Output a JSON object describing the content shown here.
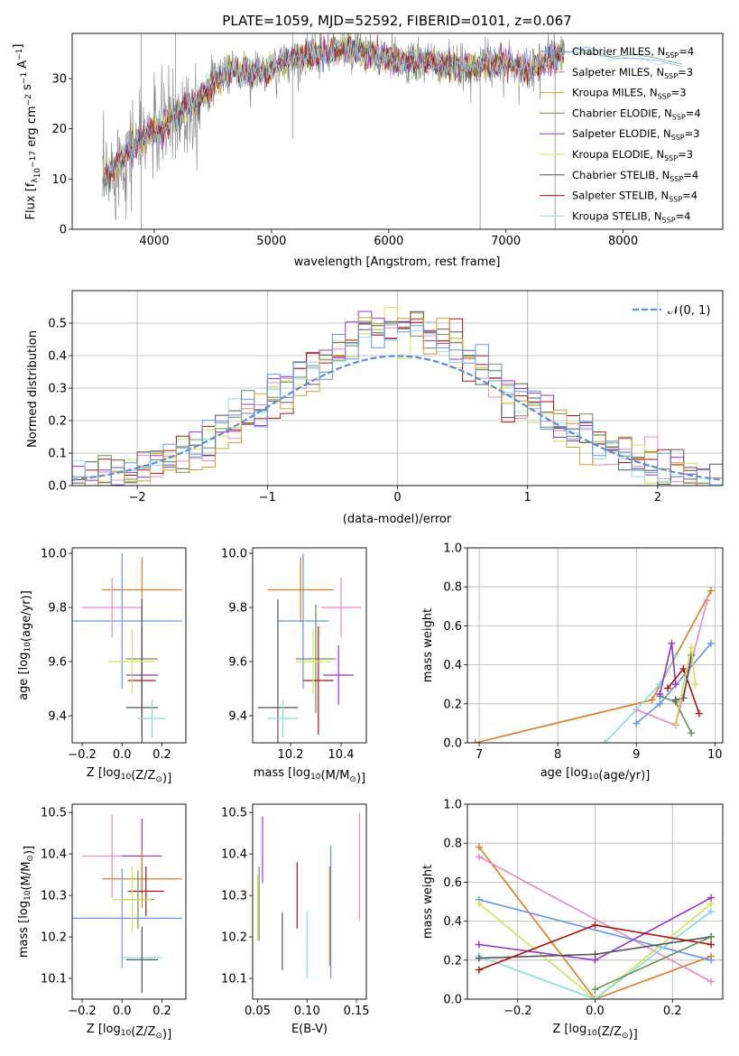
{
  "chart_data": [
    {
      "type": "line",
      "id": "spectrum",
      "title": "PLATE=1059, MJD=52592, FIBERID=0101, z=0.067",
      "xlabel": "wavelength [Angstrom, rest frame]",
      "ylabel_parts": [
        "Flux [f",
        "λ",
        "10",
        "−17",
        " erg cm",
        "−2",
        " s",
        "−1",
        " A",
        "−1",
        "]"
      ],
      "xlim": [
        3300,
        8850
      ],
      "ylim": [
        0,
        39
      ],
      "xticks": [
        4000,
        5000,
        6000,
        7000,
        8000
      ],
      "yticks": [
        0,
        10,
        20,
        30
      ],
      "envelope": {
        "x": [
          3550,
          3650,
          3750,
          3850,
          3950,
          4050,
          4150,
          4250,
          4350,
          4450,
          4550,
          4650,
          4800,
          5000,
          5200,
          5400,
          5600,
          5800,
          6000,
          6200,
          6400,
          6600,
          6800,
          7000,
          7200,
          7400,
          7500
        ],
        "y": [
          9,
          12,
          15,
          17,
          19,
          20,
          22,
          24,
          25,
          28,
          30,
          32,
          31,
          32,
          34,
          35,
          36,
          35,
          34,
          33,
          33,
          32,
          33,
          33,
          32,
          34,
          35
        ]
      },
      "models_right_x": [
        7450,
        7700,
        7900,
        8100,
        8300,
        8500
      ],
      "models_right_y": [
        35,
        35.5,
        34.5,
        34,
        33.5,
        33.5
      ],
      "legend_location": "upper right",
      "series": [
        {
          "name": "Chabrier MILES",
          "nssp": "4",
          "color": "#6495ed"
        },
        {
          "name": "Salpeter MILES",
          "nssp": "3",
          "color": "#e987c1"
        },
        {
          "name": "Kroupa MILES",
          "nssp": "3",
          "color": "#d2a02a"
        },
        {
          "name": "Chabrier ELODIE",
          "nssp": "4",
          "color": "#6b8e5a"
        },
        {
          "name": "Salpeter ELODIE",
          "nssp": "3",
          "color": "#9932cc"
        },
        {
          "name": "Kroupa ELODIE",
          "nssp": "3",
          "color": "#d4e157"
        },
        {
          "name": "Chabrier STELIB",
          "nssp": "4",
          "color": "#555555"
        },
        {
          "name": "Salpeter STELIB",
          "nssp": "4",
          "color": "#b01010"
        },
        {
          "name": "Kroupa STELIB",
          "nssp": "4",
          "color": "#9ad8f0"
        }
      ]
    },
    {
      "type": "histogram",
      "id": "residuals",
      "xlabel": "(data-model)/error",
      "ylabel": "Normed distribution",
      "xlim": [
        -2.5,
        2.5
      ],
      "ylim": [
        0,
        0.6
      ],
      "xticks": [
        -2,
        -1,
        0,
        1,
        2
      ],
      "yticks": [
        0,
        0.1,
        0.2,
        0.3,
        0.4,
        0.5
      ],
      "grid": true,
      "bin_width": 0.1,
      "gaussian_label": "𝒩(0, 1)",
      "gaussian_color": "#5b8ed6",
      "legend_location": "upper right",
      "hist_colors": [
        "#e987c1",
        "#d4e157",
        "#9932cc",
        "#b01010",
        "#555555",
        "#9ad8f0",
        "#6b8e5a",
        "#d2a02a",
        "#6495ed"
      ]
    },
    {
      "type": "errorbar",
      "id": "age_vs_Z",
      "xlabel_parts": [
        "Z [log",
        "10",
        "(Z/Z",
        "⊙",
        ")]"
      ],
      "ylabel_parts": [
        "age  [log",
        "10",
        "(age/yr)]"
      ],
      "xlim": [
        -0.25,
        0.32
      ],
      "ylim": [
        9.3,
        10.02
      ],
      "xticks": [
        -0.2,
        0.0,
        0.2
      ],
      "yticks": [
        9.4,
        9.6,
        9.8,
        10.0
      ],
      "points": [
        {
          "x": 0.1,
          "y": 9.865,
          "xerr": 0.2,
          "yerr": 0.12,
          "color": "#e07b20"
        },
        {
          "x": 0.0,
          "y": 9.75,
          "xerr": 0.3,
          "yerr": 0.25,
          "color": "#6495ed"
        },
        {
          "x": -0.05,
          "y": 9.8,
          "xerr": 0.15,
          "yerr": 0.11,
          "color": "#e987c1"
        },
        {
          "x": 0.1,
          "y": 9.61,
          "xerr": 0.08,
          "yerr": 0.2,
          "color": "#6b8e5a"
        },
        {
          "x": 0.1,
          "y": 9.55,
          "xerr": 0.08,
          "yerr": 0.11,
          "color": "#9932cc"
        },
        {
          "x": 0.1,
          "y": 9.53,
          "xerr": 0.07,
          "yerr": 0.2,
          "color": "#b01010"
        },
        {
          "x": 0.1,
          "y": 9.43,
          "xerr": 0.08,
          "yerr": 0.4,
          "color": "#555555"
        },
        {
          "x": 0.15,
          "y": 9.39,
          "xerr": 0.07,
          "yerr": 0.07,
          "color": "#80dede"
        },
        {
          "x": 0.05,
          "y": 9.6,
          "xerr": 0.12,
          "yerr": 0.12,
          "color": "#d4e157"
        }
      ]
    },
    {
      "type": "errorbar",
      "id": "age_vs_mass",
      "xlabel_parts": [
        "mass [log",
        "10",
        "(M/M",
        "⊙",
        ")]"
      ],
      "xlim": [
        10.05,
        10.5
      ],
      "ylim": [
        9.3,
        10.02
      ],
      "xticks": [
        10.2,
        10.4
      ],
      "yticks": [
        9.4,
        9.6,
        9.8,
        10.0
      ],
      "points": [
        {
          "x": 10.24,
          "y": 9.865,
          "xerr": 0.13,
          "yerr": 0.12,
          "color": "#e07b20"
        },
        {
          "x": 10.25,
          "y": 9.75,
          "xerr": 0.1,
          "yerr": 0.25,
          "color": "#6495ed"
        },
        {
          "x": 10.4,
          "y": 9.8,
          "xerr": 0.08,
          "yerr": 0.11,
          "color": "#e987c1"
        },
        {
          "x": 10.3,
          "y": 9.61,
          "xerr": 0.08,
          "yerr": 0.2,
          "color": "#6b8e5a"
        },
        {
          "x": 10.39,
          "y": 9.55,
          "xerr": 0.06,
          "yerr": 0.11,
          "color": "#9932cc"
        },
        {
          "x": 10.31,
          "y": 9.53,
          "xerr": 0.06,
          "yerr": 0.2,
          "color": "#b01010"
        },
        {
          "x": 10.15,
          "y": 9.43,
          "xerr": 0.08,
          "yerr": 0.4,
          "color": "#555555"
        },
        {
          "x": 10.17,
          "y": 9.39,
          "xerr": 0.06,
          "yerr": 0.07,
          "color": "#80dede"
        },
        {
          "x": 10.29,
          "y": 9.6,
          "xerr": 0.07,
          "yerr": 0.12,
          "color": "#d4e157"
        }
      ]
    },
    {
      "type": "line",
      "id": "weight_vs_age",
      "xlabel_parts": [
        "age  [log",
        "10",
        "(age/yr)]"
      ],
      "ylabel": "mass weight",
      "xlim": [
        6.85,
        10.1
      ],
      "ylim": [
        0,
        1.0
      ],
      "xticks": [
        7,
        8,
        9,
        10
      ],
      "yticks": [
        0.0,
        0.2,
        0.4,
        0.6,
        0.8,
        1.0
      ],
      "grid": true,
      "series": [
        {
          "color": "#e07b20",
          "x": [
            6.95,
            9.2,
            9.95
          ],
          "y": [
            0.0,
            0.22,
            0.78
          ]
        },
        {
          "color": "#e987c1",
          "x": [
            9.0,
            9.5,
            9.9
          ],
          "y": [
            0.17,
            0.09,
            0.73
          ]
        },
        {
          "color": "#6495ed",
          "x": [
            9.0,
            9.3,
            9.95
          ],
          "y": [
            0.1,
            0.2,
            0.51
          ]
        },
        {
          "color": "#80dede",
          "x": [
            8.6,
            9.3,
            9.5
          ],
          "y": [
            0.0,
            0.3,
            0.45
          ]
        },
        {
          "color": "#6b8e5a",
          "x": [
            9.3,
            9.5,
            9.7
          ],
          "y": [
            0.24,
            0.21,
            0.05
          ]
        },
        {
          "color": "#9932cc",
          "x": [
            9.3,
            9.45,
            9.5
          ],
          "y": [
            0.25,
            0.51,
            0.3
          ]
        },
        {
          "color": "#b01010",
          "x": [
            9.4,
            9.6,
            9.8
          ],
          "y": [
            0.28,
            0.38,
            0.15
          ]
        },
        {
          "color": "#555555",
          "x": [
            9.5,
            9.6,
            9.7
          ],
          "y": [
            0.22,
            0.23,
            0.45
          ]
        },
        {
          "color": "#d4e157",
          "x": [
            9.5,
            9.7,
            9.75
          ],
          "y": [
            0.1,
            0.49,
            0.3
          ]
        }
      ]
    },
    {
      "type": "errorbar",
      "id": "mass_vs_Z",
      "xlabel_parts": [
        "Z [log",
        "10",
        "(Z/Z",
        "⊙",
        ")]"
      ],
      "ylabel_parts": [
        "mass [log",
        "10",
        "(M/M",
        "⊙",
        ")]"
      ],
      "xlim": [
        -0.25,
        0.32
      ],
      "ylim": [
        10.05,
        10.52
      ],
      "xticks": [
        -0.2,
        0.0,
        0.2
      ],
      "yticks": [
        10.1,
        10.2,
        10.3,
        10.4,
        10.5
      ],
      "points": [
        {
          "x": -0.05,
          "y": 10.395,
          "xerr": 0.15,
          "yerr": 0.1,
          "color": "#e987c1"
        },
        {
          "x": 0.1,
          "y": 10.395,
          "xerr": 0.1,
          "yerr": 0.09,
          "color": "#9932cc"
        },
        {
          "x": 0.1,
          "y": 10.34,
          "xerr": 0.2,
          "yerr": 0.07,
          "color": "#e07b20"
        },
        {
          "x": 0.12,
          "y": 10.31,
          "xerr": 0.09,
          "yerr": 0.06,
          "color": "#b01010"
        },
        {
          "x": 0.08,
          "y": 10.29,
          "xerr": 0.08,
          "yerr": 0.07,
          "color": "#6b8e5a"
        },
        {
          "x": 0.0,
          "y": 10.245,
          "xerr": 0.3,
          "yerr": 0.12,
          "color": "#6495ed"
        },
        {
          "x": 0.1,
          "y": 10.15,
          "xerr": 0.1,
          "yerr": 0.07,
          "color": "#80dede"
        },
        {
          "x": 0.1,
          "y": 10.145,
          "xerr": 0.08,
          "yerr": 0.08,
          "color": "#555555"
        },
        {
          "x": 0.05,
          "y": 10.29,
          "xerr": 0.1,
          "yerr": 0.08,
          "color": "#d4e157"
        }
      ]
    },
    {
      "type": "errorbar",
      "id": "mass_vs_EBV",
      "xlabel": "E(B-V)",
      "xlim": [
        0.045,
        0.16
      ],
      "ylim": [
        10.05,
        10.52
      ],
      "xticks": [
        0.05,
        0.1,
        0.15
      ],
      "yticks": [
        10.1,
        10.2,
        10.3,
        10.4,
        10.5
      ],
      "vlines": [
        {
          "x": 0.05,
          "y": 10.27,
          "yerr": 0.08,
          "color": "#d4e157"
        },
        {
          "x": 0.0515,
          "y": 10.28,
          "yerr": 0.09,
          "color": "#6b8e5a"
        },
        {
          "x": 0.055,
          "y": 10.41,
          "yerr": 0.08,
          "color": "#9932cc"
        },
        {
          "x": 0.075,
          "y": 10.19,
          "yerr": 0.07,
          "color": "#555555"
        },
        {
          "x": 0.09,
          "y": 10.3,
          "yerr": 0.08,
          "color": "#b01010"
        },
        {
          "x": 0.1,
          "y": 10.18,
          "yerr": 0.08,
          "color": "#80dede"
        },
        {
          "x": 0.123,
          "y": 10.25,
          "yerr": 0.12,
          "color": "#e07b20"
        },
        {
          "x": 0.124,
          "y": 10.26,
          "yerr": 0.16,
          "color": "#6495ed"
        },
        {
          "x": 0.153,
          "y": 10.37,
          "yerr": 0.13,
          "color": "#e987c1"
        }
      ]
    },
    {
      "type": "line",
      "id": "weight_vs_Z",
      "xlabel_parts": [
        "Z [log",
        "10",
        "(Z/Z",
        "⊙",
        ")]"
      ],
      "ylabel": "mass weight",
      "xlim": [
        -0.33,
        0.33
      ],
      "ylim": [
        0,
        1.0
      ],
      "xticks": [
        -0.2,
        0.0,
        0.2
      ],
      "yticks": [
        0.0,
        0.2,
        0.4,
        0.6,
        0.8,
        1.0
      ],
      "grid": true,
      "series": [
        {
          "color": "#e07b20",
          "x": [
            -0.3,
            0.0,
            0.3
          ],
          "y": [
            0.78,
            0.0,
            0.22
          ]
        },
        {
          "color": "#e987c1",
          "x": [
            -0.3,
            0.3
          ],
          "y": [
            0.73,
            0.09
          ]
        },
        {
          "color": "#6495ed",
          "x": [
            -0.3,
            0.3
          ],
          "y": [
            0.51,
            0.2
          ]
        },
        {
          "color": "#d4e157",
          "x": [
            -0.3,
            0.0,
            0.3
          ],
          "y": [
            0.49,
            0.0,
            0.49
          ]
        },
        {
          "color": "#9932cc",
          "x": [
            -0.3,
            0.0,
            0.3
          ],
          "y": [
            0.28,
            0.2,
            0.52
          ]
        },
        {
          "color": "#80dede",
          "x": [
            -0.3,
            0.0,
            0.3
          ],
          "y": [
            0.22,
            0.0,
            0.45
          ]
        },
        {
          "color": "#555555",
          "x": [
            -0.3,
            0.0,
            0.3
          ],
          "y": [
            0.21,
            0.23,
            0.32
          ]
        },
        {
          "color": "#b01010",
          "x": [
            -0.3,
            0.0,
            0.3
          ],
          "y": [
            0.15,
            0.38,
            0.28
          ]
        },
        {
          "color": "#6b8e5a",
          "x": [
            0.0,
            0.3
          ],
          "y": [
            0.05,
            0.32
          ]
        }
      ]
    }
  ]
}
